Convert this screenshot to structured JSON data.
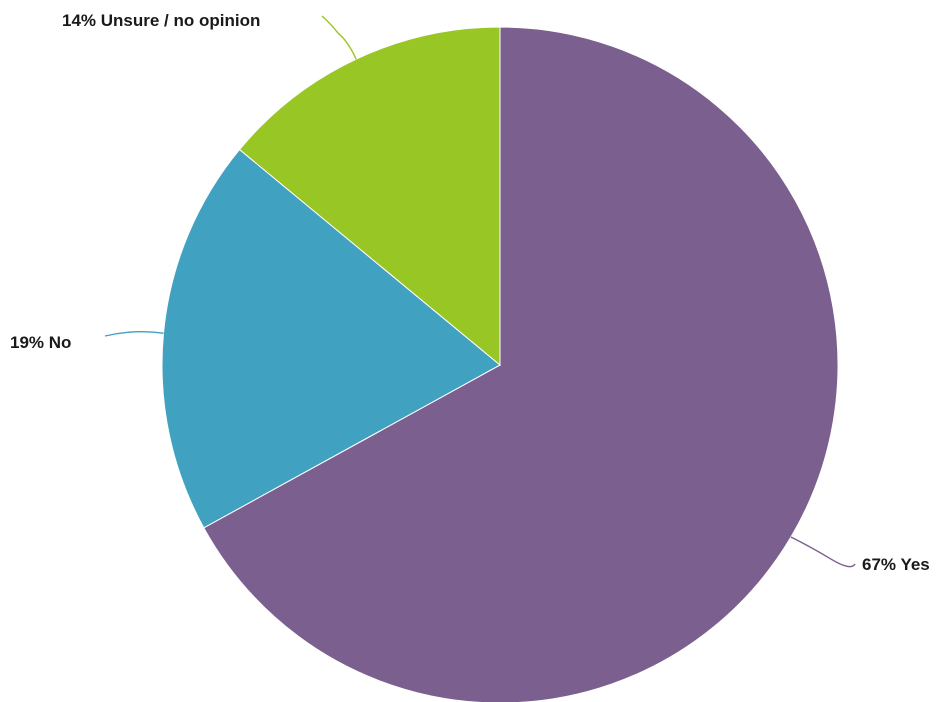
{
  "chart_data": {
    "type": "pie",
    "slices": [
      {
        "label": "Yes",
        "value": 67,
        "display": "67% Yes",
        "color": "#7b5f8e"
      },
      {
        "label": "No",
        "value": 19,
        "display": "19% No",
        "color": "#41a1c1"
      },
      {
        "label": "Unsure / no opinion",
        "value": 14,
        "display": "14% Unsure / no opinion",
        "color": "#98c625"
      }
    ],
    "start_angle": "top (12 o'clock), clockwise",
    "legend": "none (labels outside with leader lines)"
  }
}
